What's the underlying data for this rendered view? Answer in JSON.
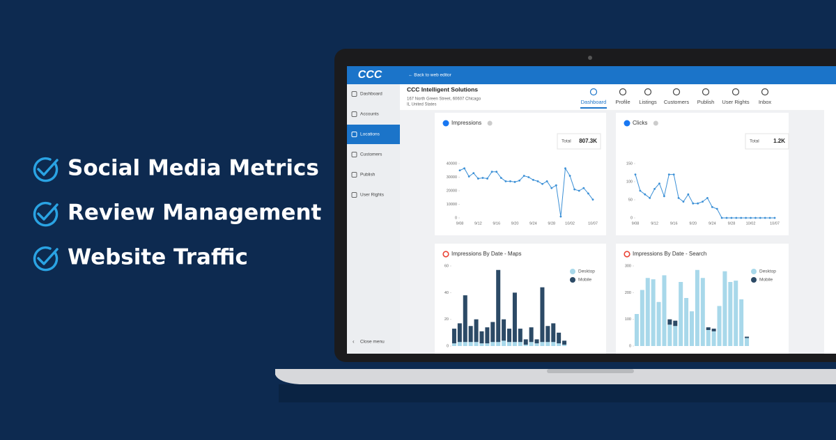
{
  "headline": {
    "items": [
      "Social Media Metrics",
      "Review Management",
      "Website Traffic"
    ]
  },
  "app": {
    "logo": "CCC",
    "back_link": "← Back to web editor",
    "business": {
      "name": "CCC Intelligent Solutions",
      "address": [
        "167 North Green Street, 60607 Chicago",
        "IL United States"
      ]
    },
    "sidebar": [
      "Dashboard",
      "Accounts",
      "Locations",
      "Customers",
      "Publish",
      "User Rights"
    ],
    "close_menu": "Close menu",
    "tabs": [
      "Dashboard",
      "Profile",
      "Listings",
      "Customers",
      "Publish",
      "User Rights",
      "Inbox"
    ]
  },
  "chart_data": [
    {
      "type": "line",
      "title": "Impressions",
      "total_label": "Total",
      "total": "807.3K",
      "color": "#3a8fd6",
      "categories": [
        "9/08",
        null,
        null,
        null,
        "9/12",
        null,
        null,
        null,
        "9/16",
        null,
        null,
        null,
        "9/20",
        null,
        null,
        null,
        "9/24",
        null,
        null,
        null,
        "9/28",
        null,
        null,
        null,
        "10/02",
        null,
        null,
        null,
        null,
        "10/07"
      ],
      "values": [
        35000,
        36500,
        30500,
        33000,
        29000,
        29500,
        29000,
        34000,
        34000,
        29500,
        27000,
        27000,
        26500,
        27500,
        31000,
        30000,
        28000,
        27000,
        25000,
        27000,
        22000,
        24000,
        1000,
        36500,
        31000,
        21000,
        20000,
        22000,
        18000,
        13500
      ],
      "ylim": [
        0,
        40000
      ],
      "yticks": [
        0,
        10000,
        20000,
        30000,
        40000
      ]
    },
    {
      "type": "line",
      "title": "Clicks",
      "total_label": "Total",
      "total": "1.2K",
      "color": "#3a8fd6",
      "categories": [
        "9/08",
        null,
        null,
        null,
        "9/12",
        null,
        null,
        null,
        "9/16",
        null,
        null,
        null,
        "9/20",
        null,
        null,
        null,
        "9/24",
        null,
        null,
        null,
        "9/28",
        null,
        null,
        null,
        "10/02",
        null,
        null,
        null,
        null,
        "10/07"
      ],
      "values": [
        120,
        75,
        65,
        55,
        80,
        95,
        60,
        120,
        120,
        55,
        45,
        65,
        40,
        40,
        45,
        55,
        30,
        25,
        0,
        0,
        0,
        0,
        0,
        0,
        0,
        0,
        0,
        0,
        0,
        0
      ],
      "ylim": [
        0,
        150
      ],
      "yticks": [
        0,
        50,
        100,
        150
      ]
    },
    {
      "type": "bar",
      "stacked": true,
      "title": "Impressions By Date - Maps",
      "categories": [
        null,
        null,
        null,
        null,
        null,
        null,
        null,
        null,
        null,
        null,
        null,
        null,
        null,
        null,
        null,
        null,
        null,
        null,
        null,
        null,
        null
      ],
      "series": [
        {
          "name": "Desktop",
          "color": "#a8d8ea",
          "values": [
            2,
            3,
            3,
            3,
            3,
            2,
            2,
            3,
            3,
            4,
            3,
            3,
            3,
            1,
            3,
            2,
            3,
            3,
            3,
            2,
            1
          ]
        },
        {
          "name": "Mobile",
          "color": "#2c4a66",
          "values": [
            11,
            14,
            35,
            12,
            17,
            9,
            12,
            15,
            54,
            16,
            10,
            37,
            10,
            4,
            11,
            3,
            41,
            12,
            14,
            8,
            3
          ]
        }
      ],
      "ylim": [
        0,
        60
      ],
      "yticks": [
        0,
        20,
        40,
        60
      ]
    },
    {
      "type": "bar",
      "stacked": true,
      "title": "Impressions By Date - Search",
      "categories": [
        null,
        null,
        null,
        null,
        null,
        null,
        null,
        null,
        null,
        null,
        null,
        null,
        null,
        null,
        null,
        null,
        null,
        null,
        null,
        null,
        null
      ],
      "series": [
        {
          "name": "Desktop",
          "color": "#a8d8ea",
          "values": [
            120,
            210,
            255,
            250,
            165,
            265,
            80,
            75,
            240,
            180,
            130,
            285,
            255,
            60,
            55,
            150,
            280,
            240,
            245,
            175,
            30
          ]
        },
        {
          "name": "Mobile",
          "color": "#2c4a66",
          "values": [
            0,
            0,
            0,
            0,
            0,
            0,
            20,
            20,
            0,
            0,
            0,
            0,
            0,
            10,
            10,
            0,
            0,
            0,
            0,
            0,
            5
          ]
        }
      ],
      "ylim": [
        0,
        300
      ],
      "yticks": [
        0,
        100,
        200,
        300
      ]
    }
  ]
}
